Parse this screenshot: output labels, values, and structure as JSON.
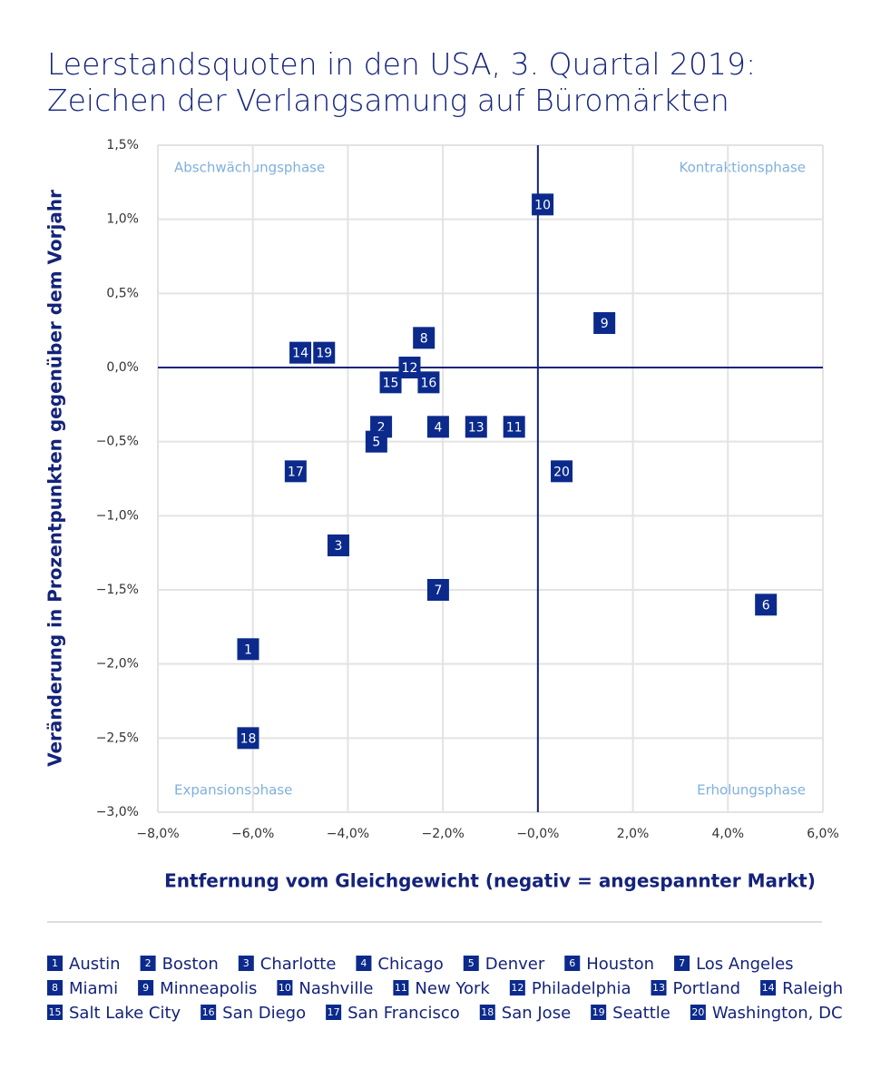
{
  "chart_data": {
    "type": "scatter",
    "title": [
      "Leerstandsquoten in den USA, 3. Quartal 2019:",
      "Zeichen der Verlangsamung auf Büromärkten"
    ],
    "x_label": "Entfernung vom Gleichgewicht (negativ = angespannter Markt)",
    "y_label": "Veränderung in Prozentpunkten gegenüber dem Vorjahr",
    "quadrants": {
      "top_left": "Abschwächungsphase",
      "top_right": "Kontraktionsphase",
      "bottom_left": "Expansionsphase",
      "bottom_right": "Erholungsphase"
    },
    "color": "#0b2a8c",
    "grid": true,
    "xlim": [
      -8,
      6
    ],
    "ylim": [
      -3,
      1.5
    ],
    "xticks": [
      {
        "value": -8,
        "label": "−8,0%"
      },
      {
        "value": -6,
        "label": "−6,0%"
      },
      {
        "value": -4,
        "label": "−4,0%"
      },
      {
        "value": -2,
        "label": "−2,0%"
      },
      {
        "value": 0,
        "label": "−0,0%"
      },
      {
        "value": 2,
        "label": "2,0%"
      },
      {
        "value": 4,
        "label": "4,0%"
      },
      {
        "value": 6,
        "label": "6,0%"
      }
    ],
    "yticks": [
      {
        "value": 1.5,
        "label": "1,5%"
      },
      {
        "value": 1,
        "label": "1,0%"
      },
      {
        "value": 0.5,
        "label": "0,5%"
      },
      {
        "value": 0,
        "label": "0,0%"
      },
      {
        "value": -0.5,
        "label": "−0,5%"
      },
      {
        "value": -1,
        "label": "−1,0%"
      },
      {
        "value": -1.5,
        "label": "−1,5%"
      },
      {
        "value": -2,
        "label": "−2,0%"
      },
      {
        "value": -2.5,
        "label": "−2,5%"
      },
      {
        "value": -3,
        "label": "−3,0%"
      }
    ],
    "labels": [
      "1",
      "2",
      "3",
      "4",
      "5",
      "6",
      "7",
      "8",
      "9",
      "10",
      "11",
      "12",
      "13",
      "14",
      "15",
      "16",
      "17",
      "18",
      "19",
      "20"
    ],
    "names": [
      "Austin",
      "Boston",
      "Charlotte",
      "Chicago",
      "Denver",
      "Houston",
      "Los Angeles",
      "Miami",
      "Minneapolis",
      "Nashville",
      "New York",
      "Philadelphia",
      "Portland",
      "Raleigh",
      "Salt Lake City",
      "San Diego",
      "San Francisco",
      "San Jose",
      "Seattle",
      "Washington, DC"
    ],
    "x": [
      -6.1,
      -3.3,
      -4.2,
      -2.1,
      -3.4,
      4.8,
      -2.1,
      -2.4,
      1.4,
      0.1,
      -0.5,
      -2.7,
      -1.3,
      -5.0,
      -3.1,
      -2.3,
      -5.1,
      -6.1,
      -4.5,
      0.5
    ],
    "values": [
      -1.9,
      -0.4,
      -1.2,
      -0.4,
      -0.5,
      -1.6,
      -1.5,
      0.2,
      0.3,
      1.1,
      -0.4,
      0.0,
      -0.4,
      0.1,
      -0.1,
      -0.1,
      -0.7,
      -2.5,
      0.1,
      -0.7
    ]
  }
}
